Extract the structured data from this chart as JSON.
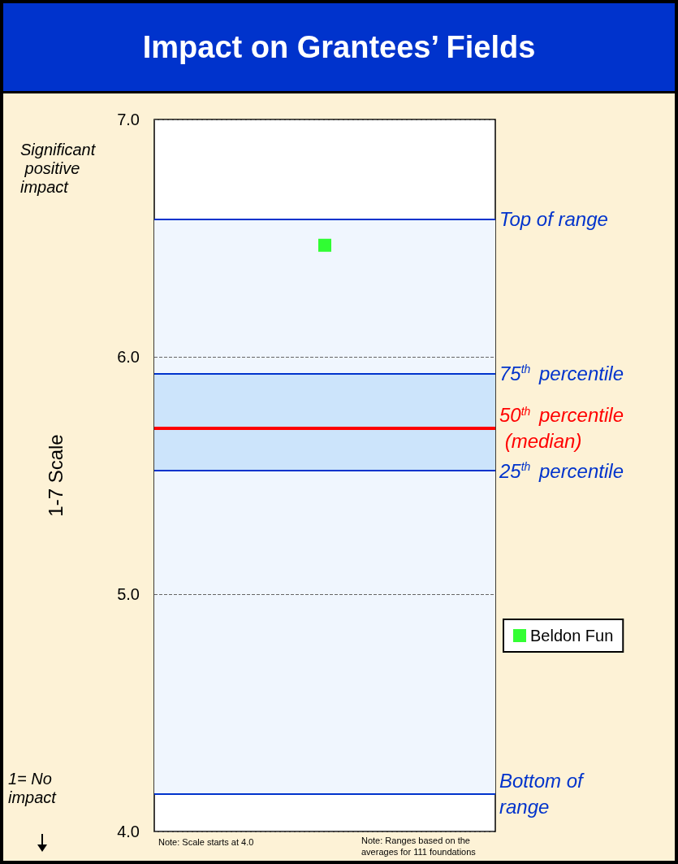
{
  "chart_data": {
    "type": "scatter",
    "title": "Impact on Grantees’ Fields",
    "ylabel": "1-7 Scale",
    "categories": [
      null
    ],
    "series": [
      {
        "name": "Beldon Fun",
        "color": "#00ff00",
        "values": [
          6.47
        ]
      }
    ],
    "marker": "square",
    "ylim": [
      4,
      7
    ],
    "yticks": [
      {
        "value": 4,
        "label": "4.0"
      },
      {
        "value": 5,
        "label": "5.0"
      },
      {
        "value": 6,
        "label": "6.0"
      },
      {
        "value": 7,
        "label": "7.0"
      }
    ],
    "grid": "y",
    "legend": "right",
    "bands": [
      {
        "axis": "y",
        "from": 4.16,
        "to": 6.58,
        "color": "#f0f6fe"
      },
      {
        "axis": "y",
        "from": 5.52,
        "to": 5.93,
        "color": "#cce4fb"
      }
    ],
    "ref_lines": [
      {
        "axis": "y",
        "value": 6.58,
        "label": "Top of range",
        "color": "#0033cc"
      },
      {
        "axis": "y",
        "value": 5.93,
        "label": "75$^{th}$ percentile",
        "color": "#0033cc"
      },
      {
        "axis": "y",
        "value": 5.7,
        "label": "50$^{th}$ percentile (median)",
        "color": "#ff0000"
      },
      {
        "axis": "y",
        "value": 5.52,
        "label": "25$^{th}$ percentile",
        "color": "#0033cc"
      },
      {
        "axis": "y",
        "value": 4.16,
        "label": "Bottom of range",
        "color": "#0033cc"
      }
    ],
    "annotations": [
      "Significant positive impact",
      "1= No impact",
      "Note: Scale starts at 4.0",
      "Note: Ranges based on the averages for 111 foundations"
    ]
  }
}
